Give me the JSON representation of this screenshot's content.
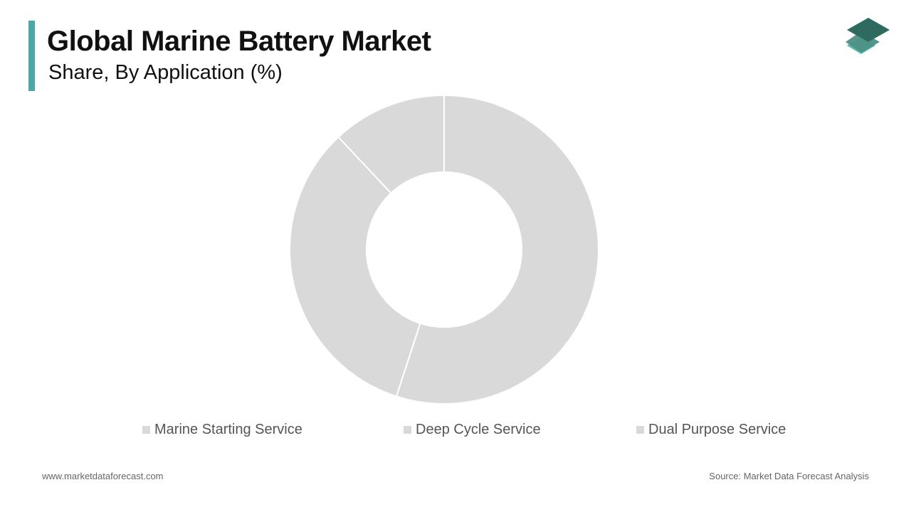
{
  "header": {
    "title": "Global Marine Battery Market",
    "subtitle": "Share, By Application (%)"
  },
  "colors": {
    "accent": "#4aa9a6",
    "slice": "#d9d9d9",
    "slice_border": "#ffffff",
    "logo_top": "#2e6a5f",
    "logo_mid": "#4f8f85",
    "logo_bottom": "#52b8ad"
  },
  "logo": {
    "icon": "stacked-layers-icon"
  },
  "chart_data": {
    "type": "pie",
    "donut": true,
    "categories": [
      "Marine Starting Service",
      "Deep Cycle Service",
      "Dual Purpose Service"
    ],
    "values": [
      55,
      33,
      12
    ],
    "legend": {
      "position": "bottom"
    }
  },
  "footer": {
    "website": "www.marketdataforecast.com",
    "source": "Source: Market Data Forecast Analysis"
  }
}
